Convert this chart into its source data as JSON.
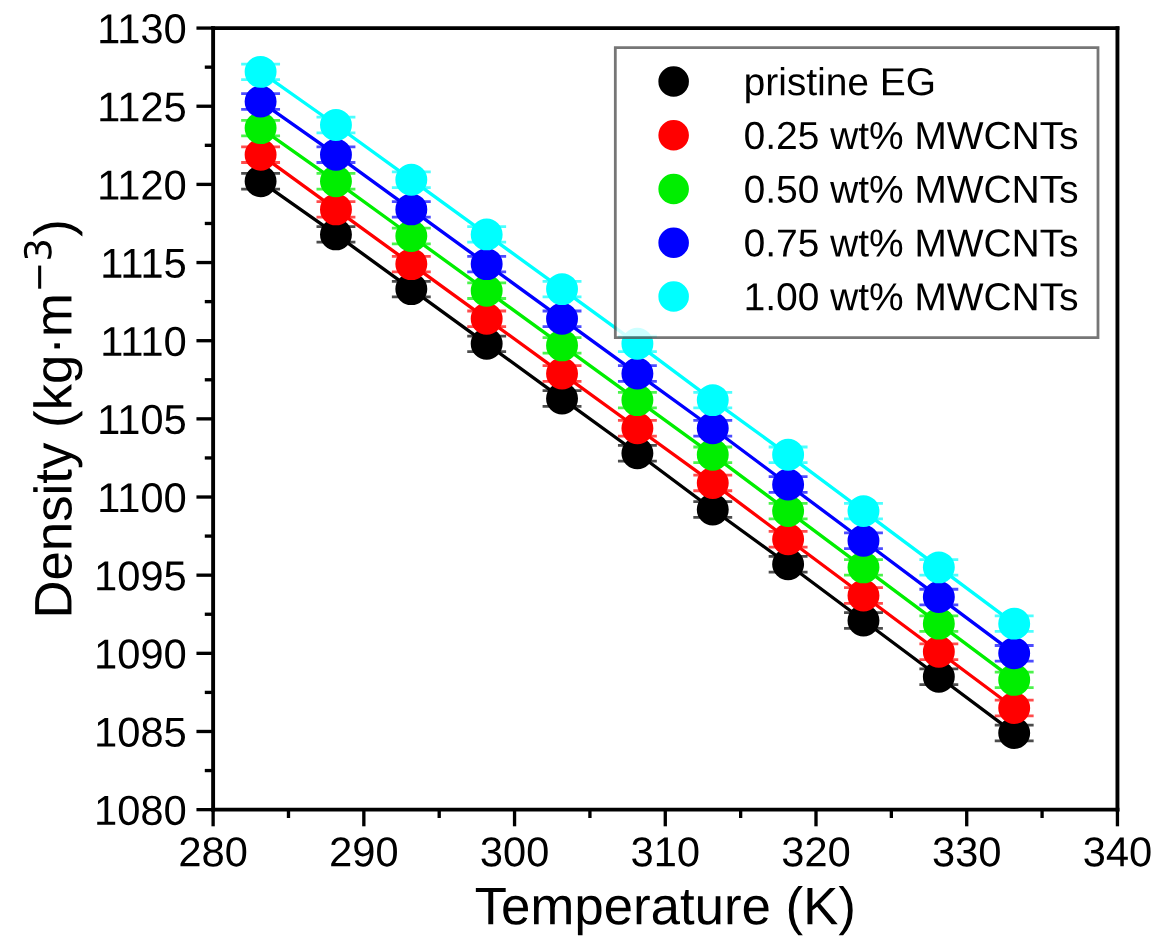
{
  "chart_data": {
    "type": "line",
    "xlabel": "Temperature (K)",
    "ylabel": "Density (kg·m$^{−3}$)",
    "x": [
      283.15,
      288.15,
      293.15,
      298.15,
      303.15,
      308.15,
      313.15,
      318.15,
      323.15,
      328.15,
      333.15
    ],
    "series": [
      {
        "name": "pristine EG",
        "color": "#000000",
        "values": [
          1120.2,
          1116.8,
          1113.3,
          1109.8,
          1106.3,
          1102.8,
          1099.2,
          1095.7,
          1092.1,
          1088.5,
          1084.9
        ],
        "errors": [
          0.5,
          0.5,
          0.5,
          0.5,
          0.5,
          0.5,
          0.5,
          0.5,
          0.5,
          0.5,
          0.5
        ]
      },
      {
        "name": "0.25 wt% MWCNTs",
        "color": "#ff0000",
        "values": [
          1121.9,
          1118.4,
          1114.9,
          1111.4,
          1107.9,
          1104.4,
          1100.9,
          1097.3,
          1093.7,
          1090.1,
          1086.5
        ],
        "errors": [
          0.5,
          0.5,
          0.5,
          0.5,
          0.5,
          0.5,
          0.5,
          0.5,
          0.5,
          0.5,
          0.5
        ]
      },
      {
        "name": "0.50 wt% MWCNTs",
        "color": "#00ee00",
        "values": [
          1123.6,
          1120.2,
          1116.7,
          1113.2,
          1109.7,
          1106.2,
          1102.7,
          1099.1,
          1095.5,
          1091.9,
          1088.3
        ],
        "errors": [
          0.5,
          0.5,
          0.5,
          0.5,
          0.5,
          0.5,
          0.5,
          0.5,
          0.5,
          0.5,
          0.5
        ]
      },
      {
        "name": "0.75 wt% MWCNTs",
        "color": "#0000ff",
        "values": [
          1125.3,
          1121.9,
          1118.4,
          1114.9,
          1111.4,
          1107.9,
          1104.4,
          1100.8,
          1097.2,
          1093.6,
          1090.0
        ],
        "errors": [
          0.5,
          0.5,
          0.5,
          0.5,
          0.5,
          0.5,
          0.5,
          0.5,
          0.5,
          0.5,
          0.5
        ]
      },
      {
        "name": "1.00 wt% MWCNTs",
        "color": "#00ffff",
        "values": [
          1127.2,
          1123.8,
          1120.3,
          1116.8,
          1113.3,
          1109.8,
          1106.2,
          1102.7,
          1099.1,
          1095.5,
          1091.9
        ],
        "errors": [
          0.5,
          0.5,
          0.5,
          0.5,
          0.5,
          0.5,
          0.5,
          0.5,
          0.5,
          0.5,
          0.5
        ]
      }
    ],
    "xlim": [
      280,
      340
    ],
    "xticks": [
      280,
      290,
      300,
      310,
      320,
      330,
      340
    ],
    "ylim": [
      1080,
      1130
    ],
    "yticks": [
      1080,
      1085,
      1090,
      1095,
      1100,
      1105,
      1110,
      1115,
      1120,
      1125,
      1130
    ],
    "marker": "circle",
    "line_style": "solid",
    "grid": false,
    "legend": "top right"
  }
}
